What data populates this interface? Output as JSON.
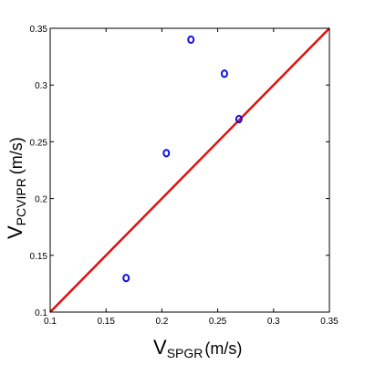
{
  "chart_data": {
    "type": "scatter",
    "title": "",
    "xlabel": {
      "main": "V",
      "sub": "SPGR",
      "unit": "(m/s)"
    },
    "ylabel": {
      "main": "V",
      "sub": "PCVIPR",
      "unit": "(m/s)"
    },
    "xlim": [
      0.1,
      0.35
    ],
    "ylim": [
      0.1,
      0.35
    ],
    "x_ticks": [
      "0.1",
      "0.15",
      "0.2",
      "0.25",
      "0.3",
      "0.35"
    ],
    "y_ticks": [
      "0.1",
      "0.15",
      "0.2",
      "0.25",
      "0.3",
      "0.35"
    ],
    "grid": false,
    "series": [
      {
        "marker": "circle",
        "color": "#1010e0",
        "points": [
          {
            "x": 0.168,
            "y": 0.13
          },
          {
            "x": 0.204,
            "y": 0.24
          },
          {
            "x": 0.226,
            "y": 0.34
          },
          {
            "x": 0.256,
            "y": 0.31
          },
          {
            "x": 0.269,
            "y": 0.27
          }
        ]
      }
    ],
    "reference_line": {
      "type": "identity",
      "from": [
        0.1,
        0.1
      ],
      "to": [
        0.35,
        0.35
      ],
      "color": "#e01010"
    }
  }
}
